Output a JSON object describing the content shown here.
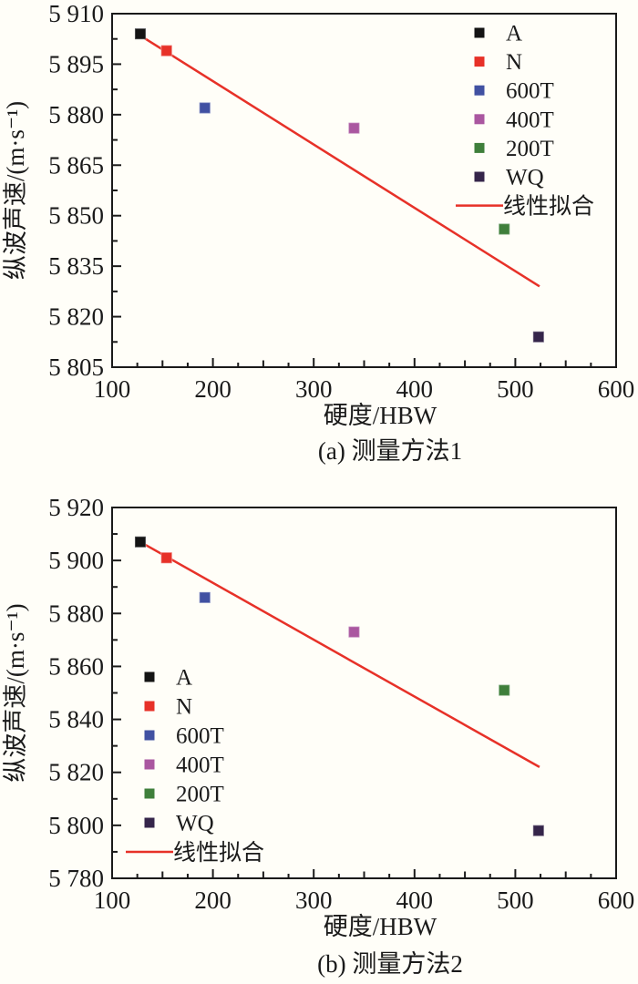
{
  "figure": {
    "background": "#fffef8",
    "text_color": "#1a1a1a",
    "accent_red": "#e73128"
  },
  "chart_data": [
    {
      "type": "scatter",
      "panel": "a",
      "caption": "(a) 测量方法1",
      "xlabel": "硬度/HBW",
      "ylabel": "纵波声速/(m·s⁻¹)",
      "xlim": [
        100,
        600
      ],
      "ylim": [
        5805,
        5910
      ],
      "grid": false,
      "legend_position": "top-right",
      "x_ticks": {
        "values": [
          100,
          200,
          300,
          400,
          500,
          600
        ],
        "labels": [
          "100",
          "200",
          "300",
          "400",
          "500",
          "600"
        ],
        "minor_step": 25
      },
      "y_ticks": {
        "values": [
          5805,
          5820,
          5835,
          5850,
          5865,
          5880,
          5895,
          5910
        ],
        "labels": [
          "5 805",
          "5 820",
          "5 835",
          "5 850",
          "5 865",
          "5 880",
          "5 895",
          "5 910"
        ],
        "minor_step": 7.5
      },
      "series": [
        {
          "name": "A",
          "color": "#141414",
          "points": [
            [
              128,
              5904
            ]
          ]
        },
        {
          "name": "N",
          "color": "#e73128",
          "points": [
            [
              154,
              5899
            ]
          ]
        },
        {
          "name": "600T",
          "color": "#4151a2",
          "points": [
            [
              192,
              5882
            ]
          ]
        },
        {
          "name": "400T",
          "color": "#aa57a0",
          "points": [
            [
              340,
              5876
            ]
          ]
        },
        {
          "name": "200T",
          "color": "#3f7f3b",
          "points": [
            [
              489,
              5846
            ]
          ]
        },
        {
          "name": "WQ",
          "color": "#35254a",
          "points": [
            [
              523,
              5814
            ]
          ]
        }
      ],
      "fit_line": {
        "label": "线性拟合",
        "color": "#e73128",
        "from": [
          128,
          5903.5
        ],
        "to": [
          524,
          5829
        ]
      }
    },
    {
      "type": "scatter",
      "panel": "b",
      "caption": "(b) 测量方法2",
      "xlabel": "硬度/HBW",
      "ylabel": "纵波声速/(m·s⁻¹)",
      "xlim": [
        100,
        600
      ],
      "ylim": [
        5780,
        5920
      ],
      "grid": false,
      "legend_position": "bottom-left",
      "x_ticks": {
        "values": [
          100,
          200,
          300,
          400,
          500,
          600
        ],
        "labels": [
          "100",
          "200",
          "300",
          "400",
          "500",
          "600"
        ],
        "minor_step": 25
      },
      "y_ticks": {
        "values": [
          5780,
          5800,
          5820,
          5840,
          5860,
          5880,
          5900,
          5920
        ],
        "labels": [
          "5 780",
          "5 800",
          "5 820",
          "5 840",
          "5 860",
          "5 880",
          "5 900",
          "5 920"
        ],
        "minor_step": 10
      },
      "series": [
        {
          "name": "A",
          "color": "#141414",
          "points": [
            [
              128,
              5907
            ]
          ]
        },
        {
          "name": "N",
          "color": "#e73128",
          "points": [
            [
              154,
              5901
            ]
          ]
        },
        {
          "name": "600T",
          "color": "#4151a2",
          "points": [
            [
              192,
              5886
            ]
          ]
        },
        {
          "name": "400T",
          "color": "#aa57a0",
          "points": [
            [
              340,
              5873
            ]
          ]
        },
        {
          "name": "200T",
          "color": "#3f7f3b",
          "points": [
            [
              489,
              5851
            ]
          ]
        },
        {
          "name": "WQ",
          "color": "#35254a",
          "points": [
            [
              523,
              5798
            ]
          ]
        }
      ],
      "fit_line": {
        "label": "线性拟合",
        "color": "#e73128",
        "from": [
          128,
          5907
        ],
        "to": [
          524,
          5822
        ]
      }
    }
  ]
}
